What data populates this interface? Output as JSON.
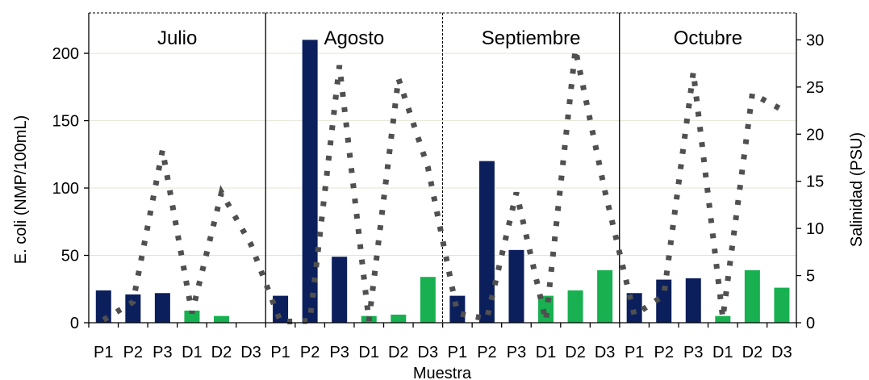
{
  "chart_data": {
    "type": "bar",
    "xlabel": "Muestra",
    "ylabel": "E. coli (NMP/100mL)",
    "y2label": "Salinidad (PSU)",
    "ylim": [
      0,
      230
    ],
    "y2lim": [
      0,
      32.86
    ],
    "yticks": [
      0,
      50,
      100,
      150,
      200
    ],
    "y2ticks": [
      0,
      5,
      10,
      15,
      20,
      25,
      30
    ],
    "months": [
      "Julio",
      "Agosto",
      "Septiembre",
      "Octubre"
    ],
    "categories": [
      "P1",
      "P2",
      "P3",
      "D1",
      "D2",
      "D3"
    ],
    "grid": true,
    "colors": {
      "P": "#0b1f5c",
      "D": "#18b050",
      "salinity": "#505050"
    },
    "series": [
      {
        "metric": "E. coli",
        "values": [
          [
            24,
            21,
            22,
            9,
            5,
            0
          ],
          [
            20,
            210,
            49,
            5,
            6,
            34
          ],
          [
            20,
            120,
            54,
            20,
            24,
            39
          ],
          [
            22,
            32,
            33,
            5,
            39,
            26
          ]
        ]
      },
      {
        "metric": "Salinidad",
        "style": "dotted-line",
        "values": [
          [
            0.3,
            2.2,
            18.3,
            1.0,
            13.8,
            8.3
          ],
          [
            0.1,
            0.2,
            27.3,
            0.2,
            25.9,
            16.5
          ],
          [
            1.0,
            0.4,
            13.8,
            0.2,
            29.0,
            14.0
          ],
          [
            0.8,
            2.9,
            26.6,
            0.5,
            24.3,
            22.6
          ]
        ]
      }
    ]
  }
}
